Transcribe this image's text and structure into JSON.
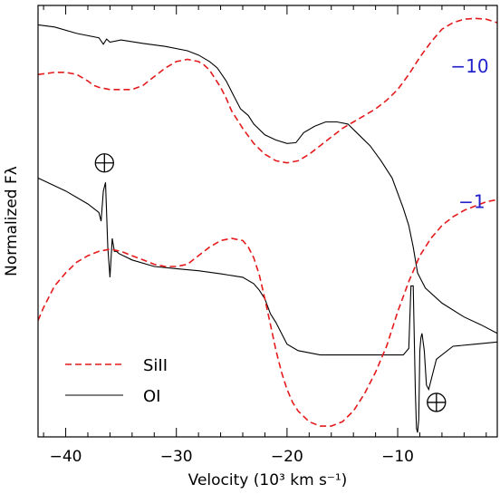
{
  "chart_data": {
    "type": "line",
    "title": "",
    "xlabel": "Velocity (10³ km s⁻¹)",
    "ylabel": "Normalized Fλ",
    "xlim": [
      -42.5,
      -1
    ],
    "ylim": [
      0,
      1
    ],
    "xticks": [
      -40,
      -30,
      -20,
      -10
    ],
    "tick_labels": [
      "−40",
      "−30",
      "−20",
      "−10"
    ],
    "grid": false,
    "legend_position": "bottom-left",
    "legend": [
      {
        "label": "SiII",
        "series_ref": "siII",
        "color": "#e41a1c",
        "style": "dashed"
      },
      {
        "label": "OI",
        "series_ref": "oi",
        "color": "#000000",
        "style": "solid"
      }
    ],
    "annotations": [
      {
        "id": "epoch-top",
        "text": "−10",
        "color": "#2222cc",
        "x": -3.5,
        "y": 0.845
      },
      {
        "id": "epoch-bottom",
        "text": "−1",
        "color": "#2222cc",
        "x": -3.3,
        "y": 0.53
      },
      {
        "id": "telluric-left",
        "symbol": "earth",
        "x": -36.5,
        "y": 0.635
      },
      {
        "id": "telluric-right",
        "symbol": "earth",
        "x": -6.5,
        "y": 0.08
      }
    ],
    "series": [
      {
        "key": "oi_top",
        "legend_ref": "oi",
        "color": "#000000",
        "style": "solid",
        "x": [
          -42.5,
          -41,
          -39,
          -37,
          -36.6,
          -36.3,
          -36,
          -35,
          -33,
          -31,
          -29,
          -28,
          -27,
          -26.3,
          -25.5,
          -24.8,
          -24.2,
          -23.5,
          -23,
          -22,
          -21,
          -20,
          -19.2,
          -18.5,
          -17.5,
          -16.5,
          -15.5,
          -14.5,
          -13.5,
          -12.5,
          -11.5,
          -10.5,
          -9.5,
          -9,
          -8.6,
          -8.2,
          -7.5,
          -6,
          -4,
          -2.5,
          -1
        ],
        "y": [
          0.955,
          0.95,
          0.935,
          0.925,
          0.91,
          0.922,
          0.915,
          0.92,
          0.912,
          0.905,
          0.895,
          0.885,
          0.87,
          0.855,
          0.825,
          0.79,
          0.76,
          0.745,
          0.725,
          0.7,
          0.688,
          0.68,
          0.682,
          0.705,
          0.72,
          0.73,
          0.73,
          0.725,
          0.7,
          0.675,
          0.64,
          0.6,
          0.53,
          0.49,
          0.44,
          0.38,
          0.345,
          0.31,
          0.278,
          0.26,
          0.24
        ]
      },
      {
        "key": "oi_bottom",
        "legend_ref": "oi",
        "color": "#000000",
        "style": "solid",
        "x": [
          -42.5,
          -40,
          -38,
          -37,
          -36.8,
          -36.6,
          -36.4,
          -36.2,
          -36.0,
          -35.8,
          -35.6,
          -35.4,
          -35.2,
          -34,
          -32,
          -30,
          -28,
          -26,
          -24,
          -23,
          -22.5,
          -22,
          -21.5,
          -21,
          -20,
          -19,
          -17,
          -15,
          -13,
          -11,
          -9.5,
          -9,
          -8.8,
          -8.6,
          -8.4,
          -8.3,
          -8.2,
          -8.1,
          -8.0,
          -7.9,
          -7.8,
          -7.6,
          -7.5,
          -7.4,
          -7.2,
          -7.0,
          -6.5,
          -5,
          -3,
          -1
        ],
        "y": [
          0.6,
          0.57,
          0.54,
          0.52,
          0.5,
          0.57,
          0.59,
          0.44,
          0.37,
          0.46,
          0.43,
          0.43,
          0.425,
          0.41,
          0.395,
          0.39,
          0.385,
          0.378,
          0.37,
          0.355,
          0.34,
          0.32,
          0.285,
          0.265,
          0.215,
          0.2,
          0.19,
          0.19,
          0.19,
          0.19,
          0.19,
          0.205,
          0.35,
          0.35,
          0.1,
          0.02,
          0.01,
          0.04,
          0.2,
          0.23,
          0.24,
          0.2,
          0.16,
          0.12,
          0.11,
          0.13,
          0.18,
          0.21,
          0.215,
          0.22
        ]
      },
      {
        "key": "siII_top",
        "legend_ref": "siII",
        "color": "#e41a1c",
        "style": "dashed",
        "x": [
          -42.5,
          -41,
          -40,
          -39,
          -38,
          -37.5,
          -37,
          -36,
          -35,
          -34,
          -33,
          -32,
          -31,
          -30,
          -29,
          -28,
          -27.5,
          -27,
          -26.5,
          -26,
          -25.5,
          -25,
          -24.5,
          -24,
          -23,
          -22,
          -21,
          -20,
          -19,
          -18,
          -17,
          -16,
          -15,
          -14,
          -13,
          -12,
          -11,
          -10,
          -9,
          -8,
          -7,
          -6,
          -5,
          -4,
          -3,
          -2,
          -1
        ],
        "y": [
          0.84,
          0.845,
          0.845,
          0.84,
          0.825,
          0.815,
          0.81,
          0.805,
          0.805,
          0.805,
          0.815,
          0.835,
          0.855,
          0.87,
          0.875,
          0.87,
          0.862,
          0.85,
          0.83,
          0.81,
          0.785,
          0.755,
          0.735,
          0.715,
          0.68,
          0.655,
          0.64,
          0.635,
          0.64,
          0.655,
          0.675,
          0.695,
          0.715,
          0.73,
          0.745,
          0.76,
          0.78,
          0.805,
          0.84,
          0.88,
          0.915,
          0.945,
          0.96,
          0.968,
          0.97,
          0.968,
          0.96
        ]
      },
      {
        "key": "siII_bottom",
        "legend_ref": "siII",
        "color": "#e41a1c",
        "style": "dashed",
        "x": [
          -42.5,
          -42,
          -41,
          -40,
          -39,
          -38,
          -37,
          -36,
          -35,
          -34,
          -33,
          -32,
          -31,
          -30,
          -29,
          -28,
          -27,
          -26,
          -25,
          -24,
          -23.5,
          -23,
          -22.5,
          -22,
          -21.5,
          -21,
          -20.5,
          -20,
          -19.5,
          -19,
          -18,
          -17,
          -16,
          -15,
          -14,
          -13,
          -12,
          -11,
          -10,
          -9,
          -8,
          -7,
          -6,
          -5,
          -4,
          -3,
          -2,
          -1
        ],
        "y": [
          0.27,
          0.3,
          0.35,
          0.38,
          0.405,
          0.42,
          0.43,
          0.435,
          0.43,
          0.42,
          0.41,
          0.4,
          0.395,
          0.395,
          0.4,
          0.42,
          0.44,
          0.455,
          0.46,
          0.455,
          0.44,
          0.415,
          0.375,
          0.32,
          0.26,
          0.2,
          0.15,
          0.11,
          0.08,
          0.06,
          0.035,
          0.025,
          0.025,
          0.035,
          0.06,
          0.1,
          0.15,
          0.21,
          0.29,
          0.36,
          0.42,
          0.46,
          0.49,
          0.51,
          0.525,
          0.535,
          0.545,
          0.55
        ]
      }
    ]
  }
}
